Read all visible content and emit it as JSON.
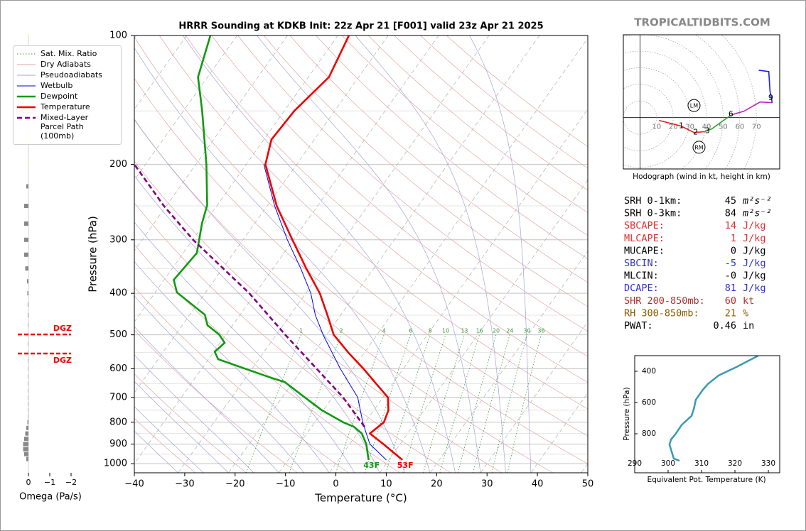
{
  "site": "TROPICALTIDBITS.COM",
  "chart_data": [
    {
      "type": "skewt",
      "title": "HRRR Sounding at KDKB Init: 22z Apr 21 [F001] valid 23z Apr 21 2025",
      "x_label": "Temperature (°C)",
      "y_label": "Pressure (hPa)",
      "xlim": [
        -40,
        50
      ],
      "ylim": [
        1050,
        100
      ],
      "y_scale": "log",
      "xticks": [
        {
          "value": -40,
          "label": "−40"
        },
        {
          "value": -30,
          "label": "−30"
        },
        {
          "value": -20,
          "label": "−20"
        },
        {
          "value": -10,
          "label": "−10"
        },
        0,
        10,
        20,
        30,
        40,
        50
      ],
      "yticks": [
        100,
        200,
        300,
        400,
        500,
        600,
        700,
        800,
        900,
        1000
      ],
      "grid": true,
      "mixing_ratios": [
        1,
        2,
        4,
        6,
        8,
        10,
        13,
        16,
        20,
        24,
        30,
        36
      ],
      "reference_lines": [
        {
          "name": "Sat. Mix. Ratio",
          "color": "#3a9a3a",
          "style": "dotted"
        },
        {
          "name": "Dry Adiabats",
          "color": "#e3a5a5",
          "style": "solid"
        },
        {
          "name": "Pseudoadiabats",
          "color": "#a3a3dc",
          "style": "solid"
        }
      ],
      "series": [
        {
          "name": "Wetbulb",
          "color": "#0000ee",
          "style": "solid",
          "pressure": [
            980,
            900,
            850,
            800,
            700,
            600,
            500,
            450,
            400,
            350,
            300,
            250,
            200
          ],
          "values": [
            9.5,
            4.0,
            1.8,
            -0.5,
            -5.0,
            -12.5,
            -20.7,
            -25,
            -29,
            -34.5,
            -41.2,
            -48.5,
            -56.5
          ]
        },
        {
          "name": "Dewpoint",
          "color": "#109a10",
          "style": "solid",
          "surface_label": "43F",
          "pressure": [
            980,
            950,
            900,
            850,
            820,
            800,
            750,
            700,
            645,
            628,
            570,
            548,
            522,
            499,
            475,
            449,
            398,
            372,
            322,
            274,
            249,
            200,
            150,
            125,
            100
          ],
          "values": [
            6.0,
            5.0,
            3.3,
            0.9,
            -1.6,
            -4.4,
            -10.3,
            -15.5,
            -21.6,
            -25.4,
            -38.1,
            -39.8,
            -39.1,
            -41.4,
            -45,
            -47,
            -55.7,
            -58.1,
            -57.3,
            -60.5,
            -62,
            -67.9,
            -76.3,
            -81.9,
            -85.3
          ]
        },
        {
          "name": "Temperature",
          "color": "#ee0000",
          "style": "solid",
          "surface_label": "53F",
          "pressure": [
            980,
            950,
            900,
            850,
            800,
            750,
            700,
            650,
            600,
            550,
            500,
            450,
            400,
            350,
            300,
            250,
            200,
            175,
            150,
            125,
            100
          ],
          "values": [
            12.7,
            10.5,
            6.7,
            2.5,
            3.7,
            2.9,
            1.0,
            -3.3,
            -7.9,
            -13.2,
            -18.6,
            -22.6,
            -27.2,
            -33.4,
            -40.2,
            -48.1,
            -56.2,
            -58.5,
            -58,
            -55.9,
            -57.8
          ]
        },
        {
          "name": "Mixed-Layer\nParcel Path (100mb)",
          "color": "#800080",
          "style": "dashed",
          "pressure": [
            820,
            700,
            600,
            500,
            400,
            300,
            250,
            200
          ],
          "values": [
            0.5,
            -7.9,
            -17.2,
            -28.2,
            -41.2,
            -59.9,
            -70.5,
            -82.2
          ]
        }
      ]
    },
    {
      "type": "hodograph",
      "caption": "Hodograph (wind in kt, height in km)",
      "xlim": [
        -10,
        84
      ],
      "ylim": [
        -31,
        50
      ],
      "rings": [
        10,
        20,
        30,
        40,
        50,
        60,
        70
      ],
      "series": [
        {
          "color": "#e02020",
          "u": [
            11.5,
            24.8,
            32.5,
            38.9
          ],
          "values": [
            -1.7,
            -5.1,
            -9.0,
            -8.5
          ]
        },
        {
          "color": "#30a030",
          "u": [
            38.9,
            43.2,
            49.6,
            55.1
          ],
          "values": [
            -8.5,
            -6.8,
            -2.1,
            1.7
          ]
        },
        {
          "color": "#c020c0",
          "u": [
            55.1,
            62.4,
            72.2,
            79.5
          ],
          "values": [
            1.7,
            3.8,
            9.4,
            9.0
          ]
        },
        {
          "color": "#2020e0",
          "u": [
            79.5,
            78.2,
            77.4,
            71.4
          ],
          "values": [
            9.0,
            15.8,
            27.8,
            28.6
          ]
        }
      ],
      "height_marks": [
        {
          "km": 1,
          "u": 24.8,
          "v": -5.1
        },
        {
          "km": 2,
          "u": 33.5,
          "v": -9.0
        },
        {
          "km": 3,
          "u": 40.6,
          "v": -8.0
        },
        {
          "km": 6,
          "u": 54.7,
          "v": 2.0
        },
        {
          "km": 9,
          "u": 78.6,
          "v": 11.9
        }
      ],
      "storm_motions": [
        {
          "label": "LM",
          "u": 32.5,
          "v": 7.3
        },
        {
          "label": "RM",
          "u": 35.5,
          "v": -17.9
        }
      ]
    },
    {
      "type": "line",
      "x_label": "Equivalent Pot. Temperature (K)",
      "y_label": "Pressure (hPa)",
      "xlim": [
        290,
        333.4
      ],
      "ylim": [
        1050,
        300
      ],
      "xticks": [
        290,
        300,
        310,
        320,
        330
      ],
      "yticks": [
        400,
        600,
        800
      ],
      "color": "#3a9ab0",
      "x": [
        327.0,
        320.4,
        315.1,
        311.9,
        310.4,
        308.3,
        307.7,
        307.0,
        304.9,
        304.0,
        302.3,
        300.9,
        300.4,
        301.1,
        301.7,
        303.4
      ],
      "values": [
        300,
        373,
        427,
        482,
        518,
        582,
        641,
        686,
        727,
        745,
        800,
        836,
        868,
        918,
        959,
        973
      ]
    },
    {
      "type": "barh",
      "x_label": "Omega (Pa/s)",
      "xlim": [
        0.5,
        -2.2
      ],
      "ylim": [
        1050,
        100
      ],
      "xticks": [
        0,
        {
          "value": -1,
          "label": "−1"
        },
        {
          "value": -2,
          "label": "−2"
        }
      ],
      "pressure": [
        100,
        125,
        150,
        175,
        200,
        225,
        250,
        275,
        300,
        325,
        350,
        375,
        400,
        425,
        450,
        475,
        500,
        525,
        550,
        575,
        600,
        625,
        650,
        675,
        700,
        725,
        750,
        775,
        800,
        825,
        850,
        875,
        900,
        925,
        950,
        975
      ],
      "values": [
        0.02,
        0.02,
        0.03,
        0.06,
        0.02,
        0.1,
        0.2,
        0.2,
        0.2,
        0.2,
        0.15,
        0.07,
        0.05,
        0.03,
        0.03,
        0.02,
        0.02,
        0.02,
        0.02,
        0.02,
        0.02,
        0.02,
        0.02,
        0.02,
        0.02,
        0.02,
        0.02,
        0.02,
        0.05,
        0.1,
        0.15,
        0.2,
        0.25,
        0.25,
        0.2,
        0.1
      ],
      "colors": [
        "#f2e600",
        "#f2e600",
        "#f2e600",
        "#f2e600",
        "#f2e600",
        "#888888",
        "#888888",
        "#888888",
        "#888888",
        "#888888",
        "#888888",
        "#888888",
        "#888888",
        "#888888",
        "#888888",
        "#888888",
        "#888888",
        "#888888",
        "#888888",
        "#888888",
        "#888888",
        "#888888",
        "#888888",
        "#888888",
        "#888888",
        "#888888",
        "#888888",
        "#888888",
        "#888888",
        "#888888",
        "#888888",
        "#888888",
        "#888888",
        "#888888",
        "#888888",
        "#888888"
      ],
      "dgz": [
        {
          "label": "DGZ",
          "value": 499
        },
        {
          "label": "DGZ",
          "value": 553
        }
      ],
      "dgz_color": "#ee0000"
    }
  ],
  "stats": [
    {
      "label": "SRH 0-1km:",
      "value": "45",
      "unit": "m²s⁻²",
      "color": "#000000"
    },
    {
      "label": "SRH 0-3km:",
      "value": "84",
      "unit": "m²s⁻²",
      "color": "#000000"
    },
    {
      "label": "SBCAPE:",
      "value": "14",
      "unit": "J/kg",
      "color": "#e03030"
    },
    {
      "label": "MLCAPE:",
      "value": "1",
      "unit": "J/kg",
      "color": "#e03030"
    },
    {
      "label": "MUCAPE:",
      "value": "0",
      "unit": "J/kg",
      "color": "#000000"
    },
    {
      "label": "SBCIN:",
      "value": "-5",
      "unit": "J/kg",
      "color": "#3333cc"
    },
    {
      "label": "MLCIN:",
      "value": "-0",
      "unit": "J/kg",
      "color": "#000000"
    },
    {
      "label": "DCAPE:",
      "value": "81",
      "unit": "J/kg",
      "color": "#3333cc"
    },
    {
      "label": "SHR 200-850mb:",
      "value": "60",
      "unit": "kt",
      "color": "#b03030"
    },
    {
      "label": "RH 300-850mb:",
      "value": "21",
      "unit": "%",
      "color": "#8b5a00"
    },
    {
      "label": "PWAT:",
      "value": "0.46",
      "unit": "in",
      "color": "#000000"
    }
  ]
}
